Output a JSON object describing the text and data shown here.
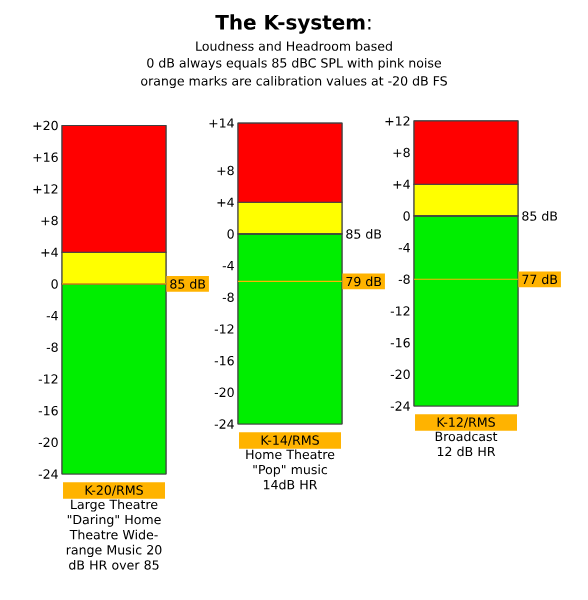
{
  "chart_data": [
    {
      "type": "bar",
      "stacked": true,
      "categories": [
        "K-20/RMS"
      ],
      "xlabel": "Large Theatre \"Daring\" Home Theatre Wide-range Music 20 dB HR over 85",
      "series": [
        {
          "color": "#00ee00",
          "values": [
            -24
          ]
        },
        {
          "color": "#ffff00",
          "values": [
            4
          ]
        },
        {
          "color": "#ff0000",
          "values": [
            16
          ]
        }
      ],
      "ylim": [
        -24,
        20
      ],
      "yticks": [
        {
          "value": 20,
          "label": "+20"
        },
        {
          "value": 16,
          "label": "+16"
        },
        {
          "value": 12,
          "label": "+12"
        },
        {
          "value": 8,
          "label": "+8"
        },
        {
          "value": 4,
          "label": "+4"
        },
        0,
        -4,
        -8,
        -12,
        -16,
        -20,
        -24
      ],
      "ref_lines": [
        {
          "axis": "y",
          "value": 0,
          "label": "85 dB",
          "color": "#ffb300"
        }
      ]
    },
    {
      "type": "bar",
      "stacked": true,
      "title": "**The K-system**:",
      "subtitle": "Loudness and Headroom based",
      "annotations": [
        "0 dB always equals 85 dBC SPL with pink noise",
        "orange marks are calibration values at -20 dB FS"
      ],
      "categories": [
        "K-14/RMS"
      ],
      "xlabel": "Home Theatre \"Pop\" music 14dB HR",
      "series": [
        {
          "color": "#00ee00",
          "values": [
            -24
          ]
        },
        {
          "color": "#ffff00",
          "values": [
            4
          ]
        },
        {
          "color": "#ff0000",
          "values": [
            10
          ]
        }
      ],
      "ylim": [
        -24,
        14
      ],
      "yticks": [
        {
          "value": 14,
          "label": "+14"
        },
        {
          "value": 8,
          "label": "+8"
        },
        {
          "value": 4,
          "label": "+4"
        },
        0,
        -4,
        -8,
        -12,
        -16,
        -20,
        -24
      ],
      "ref_lines": [
        {
          "axis": "y",
          "value": 0,
          "label": "85 dB"
        },
        {
          "axis": "y",
          "value": -6,
          "label": "79 dB",
          "color": "#ffb300"
        }
      ]
    },
    {
      "type": "bar",
      "stacked": true,
      "categories": [
        "K-12/RMS"
      ],
      "xlabel": "Broadcast 12 dB HR",
      "series": [
        {
          "color": "#00ee00",
          "values": [
            -24
          ]
        },
        {
          "color": "#ffff00",
          "values": [
            4
          ]
        },
        {
          "color": "#ff0000",
          "values": [
            8
          ]
        }
      ],
      "ylim": [
        -24,
        12
      ],
      "yticks": [
        {
          "value": 12,
          "label": "+12"
        },
        {
          "value": 8,
          "label": "+8"
        },
        {
          "value": 4,
          "label": "+4"
        },
        0,
        -4,
        -8,
        -12,
        -16,
        -20,
        -24
      ],
      "ref_lines": [
        {
          "axis": "y",
          "value": 0,
          "label": "85 dB"
        },
        {
          "axis": "y",
          "value": -8,
          "label": "77 dB",
          "color": "#ffb300"
        }
      ]
    }
  ]
}
